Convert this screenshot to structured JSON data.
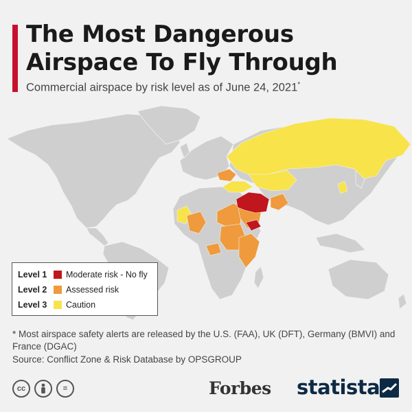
{
  "header": {
    "title": "The Most Dangerous Airspace To Fly Through",
    "subtitle": "Commercial airspace by risk level as of June 24, 2021",
    "subtitle_mark": "*"
  },
  "colors": {
    "accent": "#c8102e",
    "land": "#cfcfcf",
    "level1": "#c0161d",
    "level2": "#ef9a3c",
    "level3": "#f8e34a"
  },
  "legend": [
    {
      "level": "Level 1",
      "label": "Moderate risk - No fly",
      "color": "#c0161d"
    },
    {
      "level": "Level 2",
      "label": "Assessed risk",
      "color": "#ef9a3c"
    },
    {
      "level": "Level 3",
      "label": "Caution",
      "color": "#f8e34a"
    }
  ],
  "map_data": {
    "Level 1": [
      "Iran",
      "Syria",
      "Iraq",
      "Yemen"
    ],
    "Level 2": [
      "Ukraine (east)",
      "Libya",
      "Egypt (Sinai)",
      "Sudan",
      "South Sudan",
      "Ethiopia",
      "Somalia",
      "Mali",
      "Afghanistan",
      "Saudi Arabia",
      "Central African Republic"
    ],
    "Level 3": [
      "Russia",
      "Kazakhstan",
      "Turkmenistan",
      "North Korea",
      "Mauritania",
      "Western Sahara",
      "Greece",
      "Turkey"
    ]
  },
  "footnote": "* Most airspace safety alerts are released by the U.S. (FAA), UK (DFT), Germany (BMVI) and France (DGAC)",
  "source": "Source: Conflict Zone & Risk Database by OPSGROUP",
  "branding": {
    "forbes": "Forbes",
    "statista": "statista",
    "cc": [
      "cc",
      "by",
      "="
    ]
  }
}
